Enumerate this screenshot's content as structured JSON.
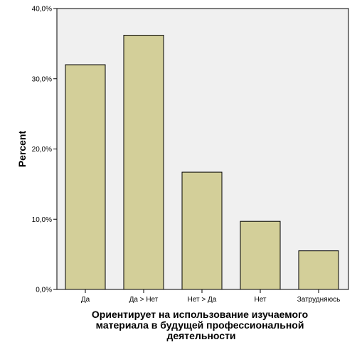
{
  "chart_data": {
    "type": "bar",
    "title": "",
    "xlabel_lines": [
      "Ориентирует на использование изучаемого",
      "материала в будущей профессиональной",
      "деятельности"
    ],
    "ylabel": "Percent",
    "categories": [
      "Да",
      "Да > Нет",
      "Нет > Да",
      "Нет",
      "Затрудняюсь"
    ],
    "values": [
      32.0,
      36.2,
      16.7,
      9.7,
      5.5
    ],
    "ylim": [
      0,
      40
    ],
    "yticks": [
      0,
      10,
      20,
      30,
      40
    ],
    "ytick_labels": [
      "0,0%",
      "10,0%",
      "20,0%",
      "30,0%",
      "40,0%"
    ],
    "grid": false,
    "legend": "none",
    "colors": {
      "bar_fill": "#d3cf99",
      "bar_stroke": "#000000",
      "plot_background": "#f0f0f0",
      "axis": "#000000"
    }
  }
}
